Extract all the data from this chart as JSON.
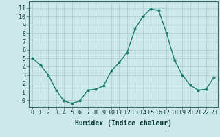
{
  "x": [
    0,
    1,
    2,
    3,
    4,
    5,
    6,
    7,
    8,
    9,
    10,
    11,
    12,
    13,
    14,
    15,
    16,
    17,
    18,
    19,
    20,
    21,
    22,
    23
  ],
  "y": [
    5.0,
    4.2,
    3.0,
    1.2,
    -0.1,
    -0.4,
    -0.1,
    1.2,
    1.3,
    1.7,
    3.5,
    4.5,
    5.7,
    8.5,
    10.0,
    10.9,
    10.7,
    8.0,
    4.8,
    3.0,
    1.8,
    1.2,
    1.3,
    2.7
  ],
  "line_color": "#1a7a6e",
  "marker_size": 2.5,
  "bg_color": "#cce8e8",
  "grid_color": "#aacccc",
  "xlabel": "Humidex (Indice chaleur)",
  "xlabel_fontsize": 7,
  "tick_fontsize": 6,
  "ylim": [
    -0.8,
    11.8
  ],
  "xlim": [
    -0.5,
    23.5
  ],
  "yticks": [
    0,
    1,
    2,
    3,
    4,
    5,
    6,
    7,
    8,
    9,
    10,
    11
  ],
  "ytick_labels": [
    "-0",
    "1",
    "2",
    "3",
    "4",
    "5",
    "6",
    "7",
    "8",
    "9",
    "10",
    "11"
  ],
  "xticks": [
    0,
    1,
    2,
    3,
    4,
    5,
    6,
    7,
    8,
    9,
    10,
    11,
    12,
    13,
    14,
    15,
    16,
    17,
    18,
    19,
    20,
    21,
    22,
    23
  ],
  "line_width": 1.0,
  "spine_color": "#336666",
  "tick_color": "#336666",
  "label_color": "#003333"
}
